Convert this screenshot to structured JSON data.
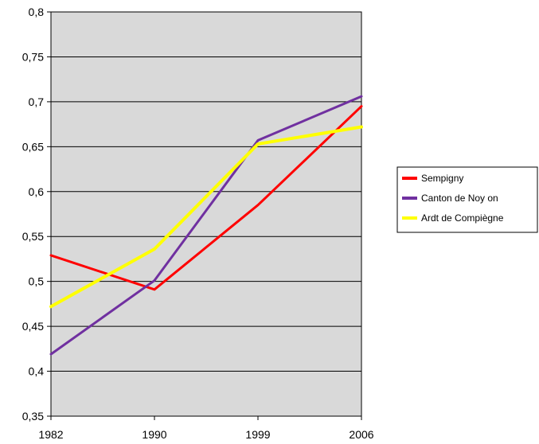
{
  "chart_data": {
    "type": "line",
    "title": "",
    "xlabel": "",
    "ylabel": "",
    "categories": [
      "1982",
      "1990",
      "1999",
      "2006"
    ],
    "ylim": [
      0.35,
      0.8
    ],
    "yticks": [
      "0,35",
      "0,4",
      "0,45",
      "0,5",
      "0,55",
      "0,6",
      "0,65",
      "0,7",
      "0,75",
      "0,8"
    ],
    "ytick_values": [
      0.35,
      0.4,
      0.45,
      0.5,
      0.55,
      0.6,
      0.65,
      0.7,
      0.75,
      0.8
    ],
    "grid": "horizontal",
    "plot_background": "#d9d9d9",
    "legend_position": "right",
    "series": [
      {
        "name": "Sempigny",
        "values": [
          0.529,
          0.491,
          0.585,
          0.695
        ],
        "color": "#ff0000",
        "width": 3
      },
      {
        "name": "Canton de Noy on",
        "values": [
          0.419,
          0.501,
          0.657,
          0.706
        ],
        "color": "#7030a0",
        "width": 3
      },
      {
        "name": "Ardt de Compiègne",
        "values": [
          0.472,
          0.536,
          0.653,
          0.672
        ],
        "color": "#ffff00",
        "width": 4
      }
    ]
  }
}
